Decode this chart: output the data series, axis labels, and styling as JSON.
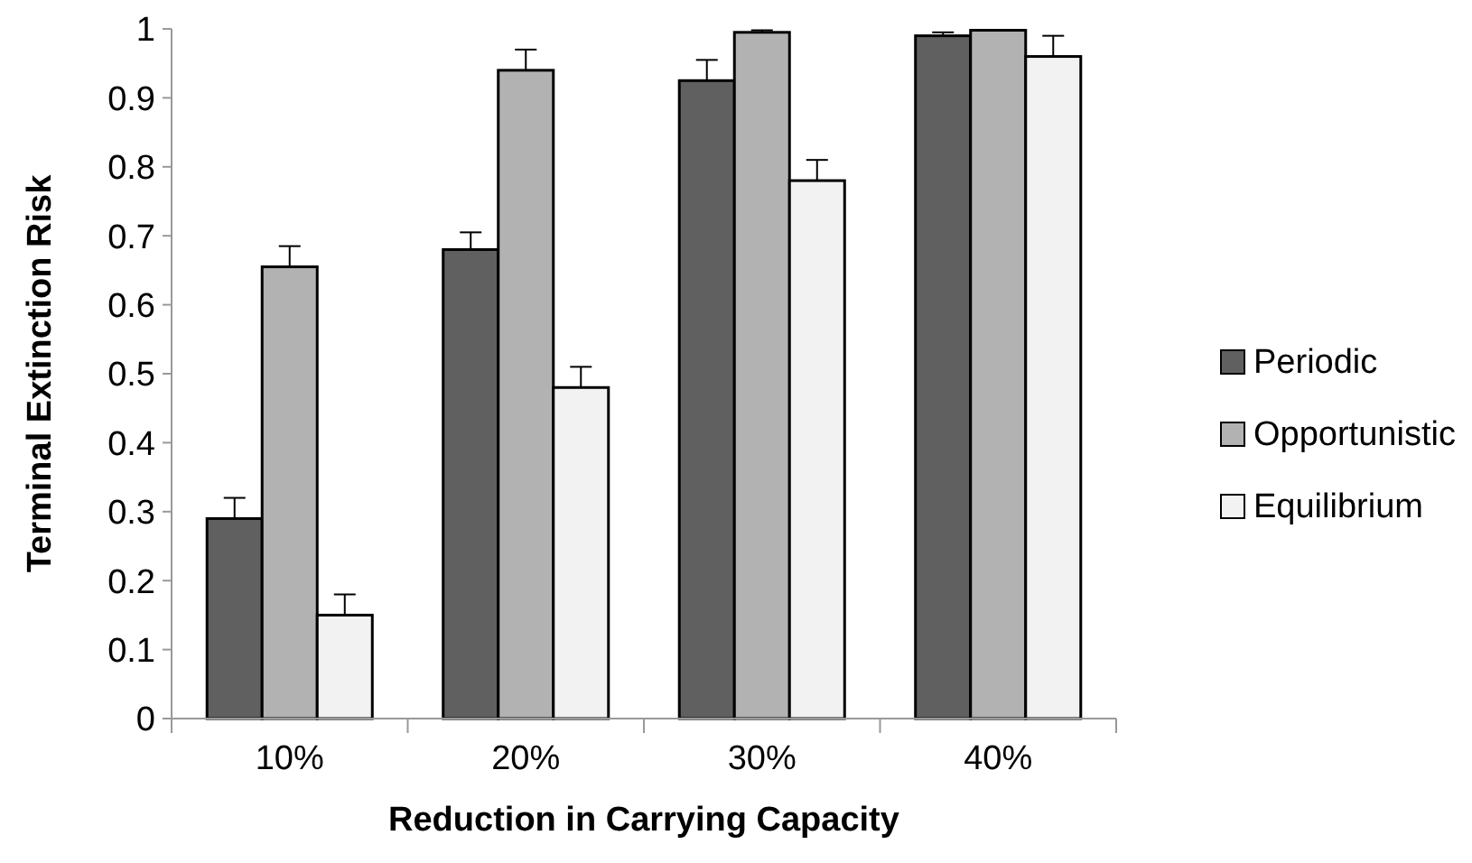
{
  "chart_data": {
    "type": "bar",
    "xlabel": "Reduction in Carrying Capacity",
    "ylabel": "Terminal Extinction Risk",
    "categories": [
      "10%",
      "20%",
      "30%",
      "40%"
    ],
    "series": [
      {
        "name": "Periodic",
        "color": "#606060",
        "values": [
          0.29,
          0.68,
          0.925,
          0.99
        ],
        "errors": [
          [
            0.29,
            0.32
          ],
          [
            0.68,
            0.705
          ],
          [
            0.925,
            0.955
          ],
          [
            0.99,
            0.995
          ]
        ]
      },
      {
        "name": "Opportunistic",
        "color": "#b2b2b2",
        "values": [
          0.655,
          0.94,
          0.995,
          0.998
        ],
        "errors": [
          [
            0.655,
            0.685
          ],
          [
            0.94,
            0.97
          ],
          [
            0.995,
            0.998
          ],
          null
        ]
      },
      {
        "name": "Equilibrium",
        "color": "#f2f2f2",
        "values": [
          0.15,
          0.48,
          0.78,
          0.96
        ],
        "errors": [
          [
            0.15,
            0.18
          ],
          [
            0.48,
            0.51
          ],
          [
            0.78,
            0.81
          ],
          [
            0.96,
            0.99
          ]
        ]
      }
    ],
    "ylim": [
      0,
      1
    ],
    "yticks": [
      0,
      0.1,
      0.2,
      0.3,
      0.4,
      0.5,
      0.6,
      0.7,
      0.8,
      0.9,
      1
    ],
    "grid": false,
    "legend": "right"
  }
}
